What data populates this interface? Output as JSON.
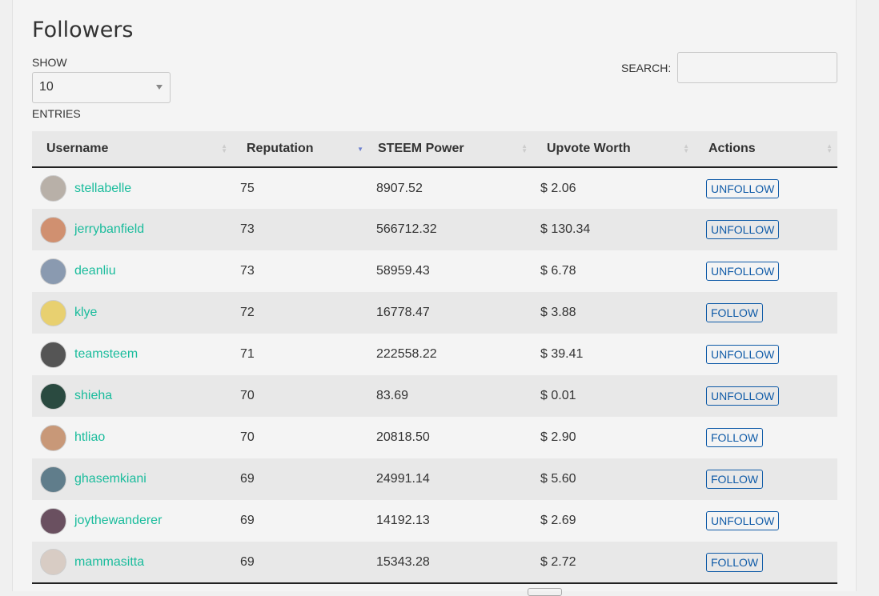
{
  "title": "Followers",
  "show_label": "SHOW",
  "entries_label": "ENTRIES",
  "page_length": "10",
  "search_label": "SEARCH:",
  "search_value": "",
  "columns": [
    "Username",
    "Reputation",
    "STEEM Power",
    "Upvote Worth",
    "Actions"
  ],
  "sorted_column": "Reputation",
  "colors": {
    "username": "#1abc9c",
    "button": "#0e5aa7"
  },
  "rows": [
    {
      "user": "stellabelle",
      "rep": "75",
      "sp": "8907.52",
      "worth": "$ 2.06",
      "action": "UNFOLLOW",
      "avatar": "#b8b0a8"
    },
    {
      "user": "jerrybanfield",
      "rep": "73",
      "sp": "566712.32",
      "worth": "$ 130.34",
      "action": "UNFOLLOW",
      "avatar": "#d09070"
    },
    {
      "user": "deanliu",
      "rep": "73",
      "sp": "58959.43",
      "worth": "$ 6.78",
      "action": "UNFOLLOW",
      "avatar": "#8a9ab0"
    },
    {
      "user": "klye",
      "rep": "72",
      "sp": "16778.47",
      "worth": "$ 3.88",
      "action": "FOLLOW",
      "avatar": "#e8d070"
    },
    {
      "user": "teamsteem",
      "rep": "71",
      "sp": "222558.22",
      "worth": "$ 39.41",
      "action": "UNFOLLOW",
      "avatar": "#555"
    },
    {
      "user": "shieha",
      "rep": "70",
      "sp": "83.69",
      "worth": "$ 0.01",
      "action": "UNFOLLOW",
      "avatar": "#2a4a40"
    },
    {
      "user": "htliao",
      "rep": "70",
      "sp": "20818.50",
      "worth": "$ 2.90",
      "action": "FOLLOW",
      "avatar": "#c89878"
    },
    {
      "user": "ghasemkiani",
      "rep": "69",
      "sp": "24991.14",
      "worth": "$ 5.60",
      "action": "FOLLOW",
      "avatar": "#607d8b"
    },
    {
      "user": "joythewanderer",
      "rep": "69",
      "sp": "14192.13",
      "worth": "$ 2.69",
      "action": "UNFOLLOW",
      "avatar": "#6a5060"
    },
    {
      "user": "mammasitta",
      "rep": "69",
      "sp": "15343.28",
      "worth": "$ 2.72",
      "action": "FOLLOW",
      "avatar": "#d8ccc4"
    }
  ]
}
